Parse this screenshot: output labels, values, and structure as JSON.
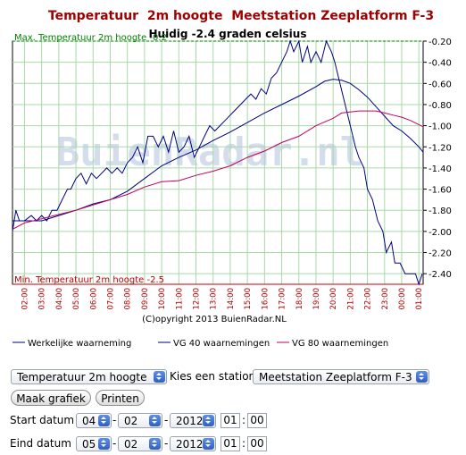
{
  "chart_data": {
    "type": "line",
    "title": "Temperatuur  2m hoogte  Meetstation Zeeplatform F-3",
    "current": "Huidig -2.4 graden celsius",
    "max_label": "Max. Temperatuur 2m hoogte -0.2",
    "min_label": "Min. Temperatuur 2m hoogte -2.5",
    "copyright": "(C)opyright 2013 BuienRadar.NL",
    "watermark": "BuienRadar.nl",
    "ylim": [
      -2.5,
      -0.2
    ],
    "yticks": [
      -0.2,
      -0.4,
      -0.6,
      -0.8,
      -1.0,
      -1.2,
      -1.4,
      -1.6,
      -1.8,
      -2.0,
      -2.2,
      -2.4
    ],
    "ytick_labels": [
      "-0.20",
      "-0.40",
      "-0.60",
      "-0.80",
      "-1.00",
      "-1.20",
      "-1.40",
      "-1.60",
      "-1.80",
      "-2.00",
      "-2.20",
      "-2.40"
    ],
    "xlim": [
      1.3,
      25.25
    ],
    "xticks": [
      2,
      3,
      4,
      5,
      6,
      7,
      8,
      9,
      10,
      11,
      12,
      13,
      14,
      15,
      16,
      17,
      18,
      19,
      20,
      21,
      22,
      23,
      24,
      25
    ],
    "xtick_labels": [
      "02:00",
      "03:00",
      "04:00",
      "05:00",
      "06:00",
      "07:00",
      "08:00",
      "09:00",
      "10:00",
      "11:00",
      "12:00",
      "13:00",
      "14:00",
      "15:00",
      "16:00",
      "17:00",
      "18:00",
      "19:00",
      "20:00",
      "21:00",
      "22:00",
      "23:00",
      "00:00",
      "01:00"
    ],
    "grid": true,
    "legend": "bottom",
    "series": [
      {
        "name": "Werkelijke waarneming",
        "color": "#000080",
        "x": [
          1.3,
          1.5,
          1.7,
          2.0,
          2.4,
          2.7,
          3.0,
          3.3,
          3.6,
          3.9,
          4.2,
          4.5,
          4.7,
          5.0,
          5.3,
          5.6,
          5.9,
          6.2,
          6.5,
          6.8,
          7.1,
          7.4,
          7.7,
          8.0,
          8.3,
          8.6,
          8.9,
          9.2,
          9.5,
          9.8,
          10.1,
          10.4,
          10.7,
          11.0,
          11.3,
          11.6,
          11.9,
          12.2,
          12.5,
          12.8,
          13.1,
          13.4,
          13.7,
          14.0,
          14.3,
          14.6,
          14.9,
          15.2,
          15.5,
          15.8,
          16.1,
          16.4,
          16.7,
          17.0,
          17.3,
          17.5,
          17.7,
          18.0,
          18.2,
          18.5,
          18.7,
          19.0,
          19.3,
          19.6,
          19.9,
          20.1,
          20.4,
          20.7,
          21.0,
          21.3,
          21.5,
          21.8,
          22.0,
          22.3,
          22.6,
          22.9,
          23.1,
          23.4,
          23.6,
          23.9,
          24.2,
          24.5,
          24.8,
          25.0,
          25.2
        ],
        "y": [
          -2.0,
          -1.8,
          -1.9,
          -1.9,
          -1.85,
          -1.9,
          -1.85,
          -1.9,
          -1.8,
          -1.8,
          -1.7,
          -1.6,
          -1.6,
          -1.5,
          -1.45,
          -1.55,
          -1.45,
          -1.5,
          -1.45,
          -1.4,
          -1.45,
          -1.4,
          -1.45,
          -1.35,
          -1.3,
          -1.2,
          -1.35,
          -1.1,
          -1.1,
          -1.2,
          -1.1,
          -1.25,
          -1.05,
          -1.25,
          -1.2,
          -1.1,
          -1.3,
          -1.2,
          -1.1,
          -1.0,
          -1.05,
          -1.0,
          -0.95,
          -0.9,
          -0.85,
          -0.8,
          -0.75,
          -0.7,
          -0.75,
          -0.65,
          -0.7,
          -0.55,
          -0.5,
          -0.4,
          -0.3,
          -0.2,
          -0.3,
          -0.2,
          -0.4,
          -0.25,
          -0.4,
          -0.3,
          -0.4,
          -0.2,
          -0.3,
          -0.4,
          -0.6,
          -0.8,
          -1.0,
          -1.2,
          -1.3,
          -1.4,
          -1.6,
          -1.7,
          -1.9,
          -2.0,
          -2.2,
          -2.1,
          -2.3,
          -2.3,
          -2.4,
          -2.4,
          -2.4,
          -2.5,
          -2.4
        ]
      },
      {
        "name": "VG 40 waarnemingen",
        "color": "#000080",
        "x": [
          1.3,
          2,
          3,
          4,
          5,
          6,
          7,
          8,
          9,
          10,
          11,
          12,
          13,
          14,
          15,
          16,
          17,
          18,
          19,
          19.5,
          20,
          20.5,
          21,
          21.5,
          22,
          22.5,
          23,
          23.5,
          24,
          24.5,
          25,
          25.25
        ],
        "y": [
          -1.9,
          -1.9,
          -1.9,
          -1.85,
          -1.8,
          -1.74,
          -1.7,
          -1.62,
          -1.5,
          -1.38,
          -1.3,
          -1.23,
          -1.14,
          -1.06,
          -0.97,
          -0.88,
          -0.8,
          -0.72,
          -0.63,
          -0.58,
          -0.56,
          -0.57,
          -0.6,
          -0.66,
          -0.73,
          -0.82,
          -0.91,
          -1.0,
          -1.05,
          -1.12,
          -1.2,
          -1.25
        ]
      },
      {
        "name": "VG 80 waarnemingen",
        "color": "#c00060",
        "x": [
          1.3,
          2,
          3,
          4,
          5,
          6,
          7,
          8,
          9,
          10,
          11,
          12,
          13,
          14,
          15,
          16,
          17,
          18,
          19,
          20,
          20.5,
          21,
          21.5,
          22,
          22.5,
          23,
          23.5,
          24,
          24.5,
          25,
          25.25
        ],
        "y": [
          -1.98,
          -1.92,
          -1.88,
          -1.84,
          -1.8,
          -1.75,
          -1.7,
          -1.65,
          -1.58,
          -1.53,
          -1.52,
          -1.47,
          -1.43,
          -1.38,
          -1.3,
          -1.24,
          -1.16,
          -1.1,
          -1.0,
          -0.93,
          -0.88,
          -0.87,
          -0.86,
          -0.86,
          -0.86,
          -0.88,
          -0.9,
          -0.92,
          -0.95,
          -0.99,
          -1.01
        ]
      }
    ]
  },
  "controls": {
    "parameter_select": "Temperatuur 2m hoogte",
    "station_label": "Kies een station:",
    "station_select": "Meetstation Zeeplatform F-3",
    "make_chart_button": "Maak grafiek",
    "print_button": "Printen",
    "start_label": "Start datum",
    "start_day": "04",
    "start_month": "02",
    "start_year": "2012",
    "start_hour": "01",
    "start_minute": "00",
    "end_label": "Eind datum",
    "end_day": "05",
    "end_month": "02",
    "end_year": "2012",
    "end_hour": "01",
    "end_minute": "00",
    "separator": "-",
    "time_separator": ":"
  }
}
